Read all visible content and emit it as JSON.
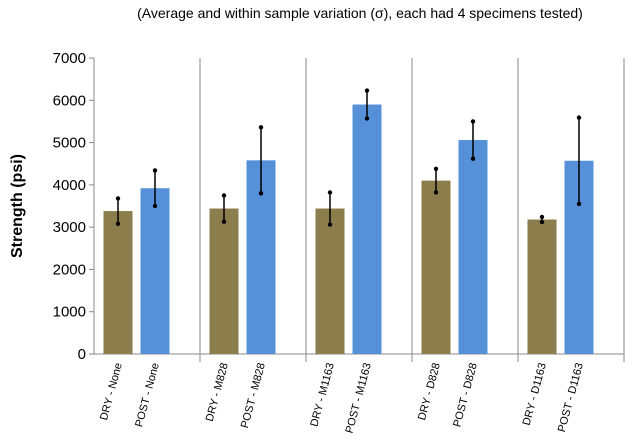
{
  "chart_data": {
    "type": "bar",
    "title": "(Average and within sample variation (σ), each had 4 specimens tested)",
    "y_label": "Strength (psi)",
    "categories": [
      "DRY - None",
      "POST - None",
      "DRY - M828",
      "POST - M828",
      "DRY - M1163",
      "POST - M1163",
      "DRY - D828",
      "POST - D828",
      "DRY - D1163",
      "POST - D1163"
    ],
    "values": [
      3380,
      3920,
      3440,
      4580,
      3440,
      5900,
      4100,
      5060,
      3180,
      4570
    ],
    "errors": [
      300,
      420,
      310,
      780,
      380,
      330,
      280,
      440,
      60,
      1020
    ],
    "colors": [
      "#8c7e4c",
      "#5590d8",
      "#8c7e4c",
      "#5590d8",
      "#8c7e4c",
      "#5590d8",
      "#8c7e4c",
      "#5590d8",
      "#8c7e4c",
      "#5590d8"
    ],
    "ylim": [
      0,
      7000
    ],
    "yticks": [
      0,
      1000,
      2000,
      3000,
      4000,
      5000,
      6000,
      7000
    ]
  }
}
